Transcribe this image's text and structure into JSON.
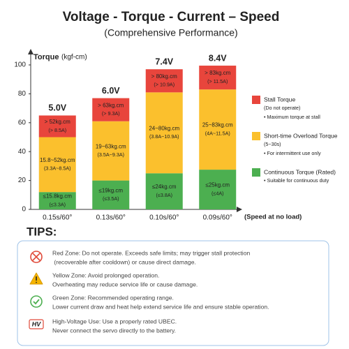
{
  "chart_data": {
    "type": "stacked_bar",
    "title": "Voltage - Torque - Current – Speed",
    "subtitle": "(Comprehensive Performance)",
    "y_label": "Torque",
    "y_unit": "(kgf-cm)",
    "x_label": "(Speed at no load)",
    "categories": [
      "0.15s/60°",
      "0.13s/60°",
      "0.10s/60°",
      "0.09s/60°"
    ],
    "bar_titles": [
      "5.0V",
      "6.0V",
      "7.4V",
      "8.4V"
    ],
    "ylim": [
      0,
      100
    ],
    "yticks": [
      0,
      20,
      40,
      60,
      80,
      100
    ],
    "grid": false,
    "series": [
      {
        "name": "Continuous Torque (Rated)",
        "color": "#4caf50",
        "text_color": "#ffffff",
        "desc": [
          "• Suitable for continuous duty"
        ],
        "values": [
          12,
          20,
          25,
          27.5
        ],
        "texts": [
          [
            "≤15.8kg.cm",
            "(≤3.3A)"
          ],
          [
            "≤19kg.cm",
            "(≤3.5A)"
          ],
          [
            "≤24kg.cm",
            "(≤3.8A)"
          ],
          [
            "≤25kg.cm",
            "(≤4A)"
          ]
        ]
      },
      {
        "name": "Short-time Overload Torque",
        "color": "#fbc02d",
        "text_color": "#333333",
        "desc": [
          "(5~30s)",
          "• For intermittent use only"
        ],
        "values": [
          38,
          41,
          56,
          55.5
        ],
        "texts": [
          [
            "15.8~52kg.cm",
            "(3.3A~8.5A)"
          ],
          [
            "19~63kg.cm",
            "(3.5A~9.3A)"
          ],
          [
            "24~80kg.cm",
            "(3.8A~10.9A)"
          ],
          [
            "25~83kg.cm",
            "(4A~11.5A)"
          ]
        ]
      },
      {
        "name": "Stall Torque",
        "color": "#e8453c",
        "text_color": "#ffffff",
        "desc": [
          "(Do not operate)",
          "• Maximum torque at stall"
        ],
        "values": [
          15,
          16,
          16,
          16.5
        ],
        "texts": [
          [
            "> 52kg.cm",
            "(> 8.5A)"
          ],
          [
            "> 63kg.cm",
            "(> 9.3A)"
          ],
          [
            "> 80kg.cm",
            "(> 10.9A)"
          ],
          [
            "> 83kg.cm",
            "(> 11.5A)"
          ]
        ]
      }
    ]
  },
  "tips": {
    "title": "TIPS:",
    "items": [
      {
        "lines": [
          "Red Zone: Do not operate. Exceeds safe limits; may trigger stall protection",
          " (recoverable after cooldown) or cause direct damage."
        ]
      },
      {
        "lines": [
          "Yellow Zone: Avoid prolonged operation.",
          "Overheating may reduce service life or cause damage."
        ]
      },
      {
        "lines": [
          "Green Zone: Recommended operating range.",
          "Lower current draw and heat help extend service life and ensure stable operation."
        ]
      },
      {
        "badge": "HV",
        "lines": [
          "High-Voltage Use: Use a properly rated UBEC.",
          "Never connect the servo directly to the battery."
        ]
      }
    ]
  }
}
